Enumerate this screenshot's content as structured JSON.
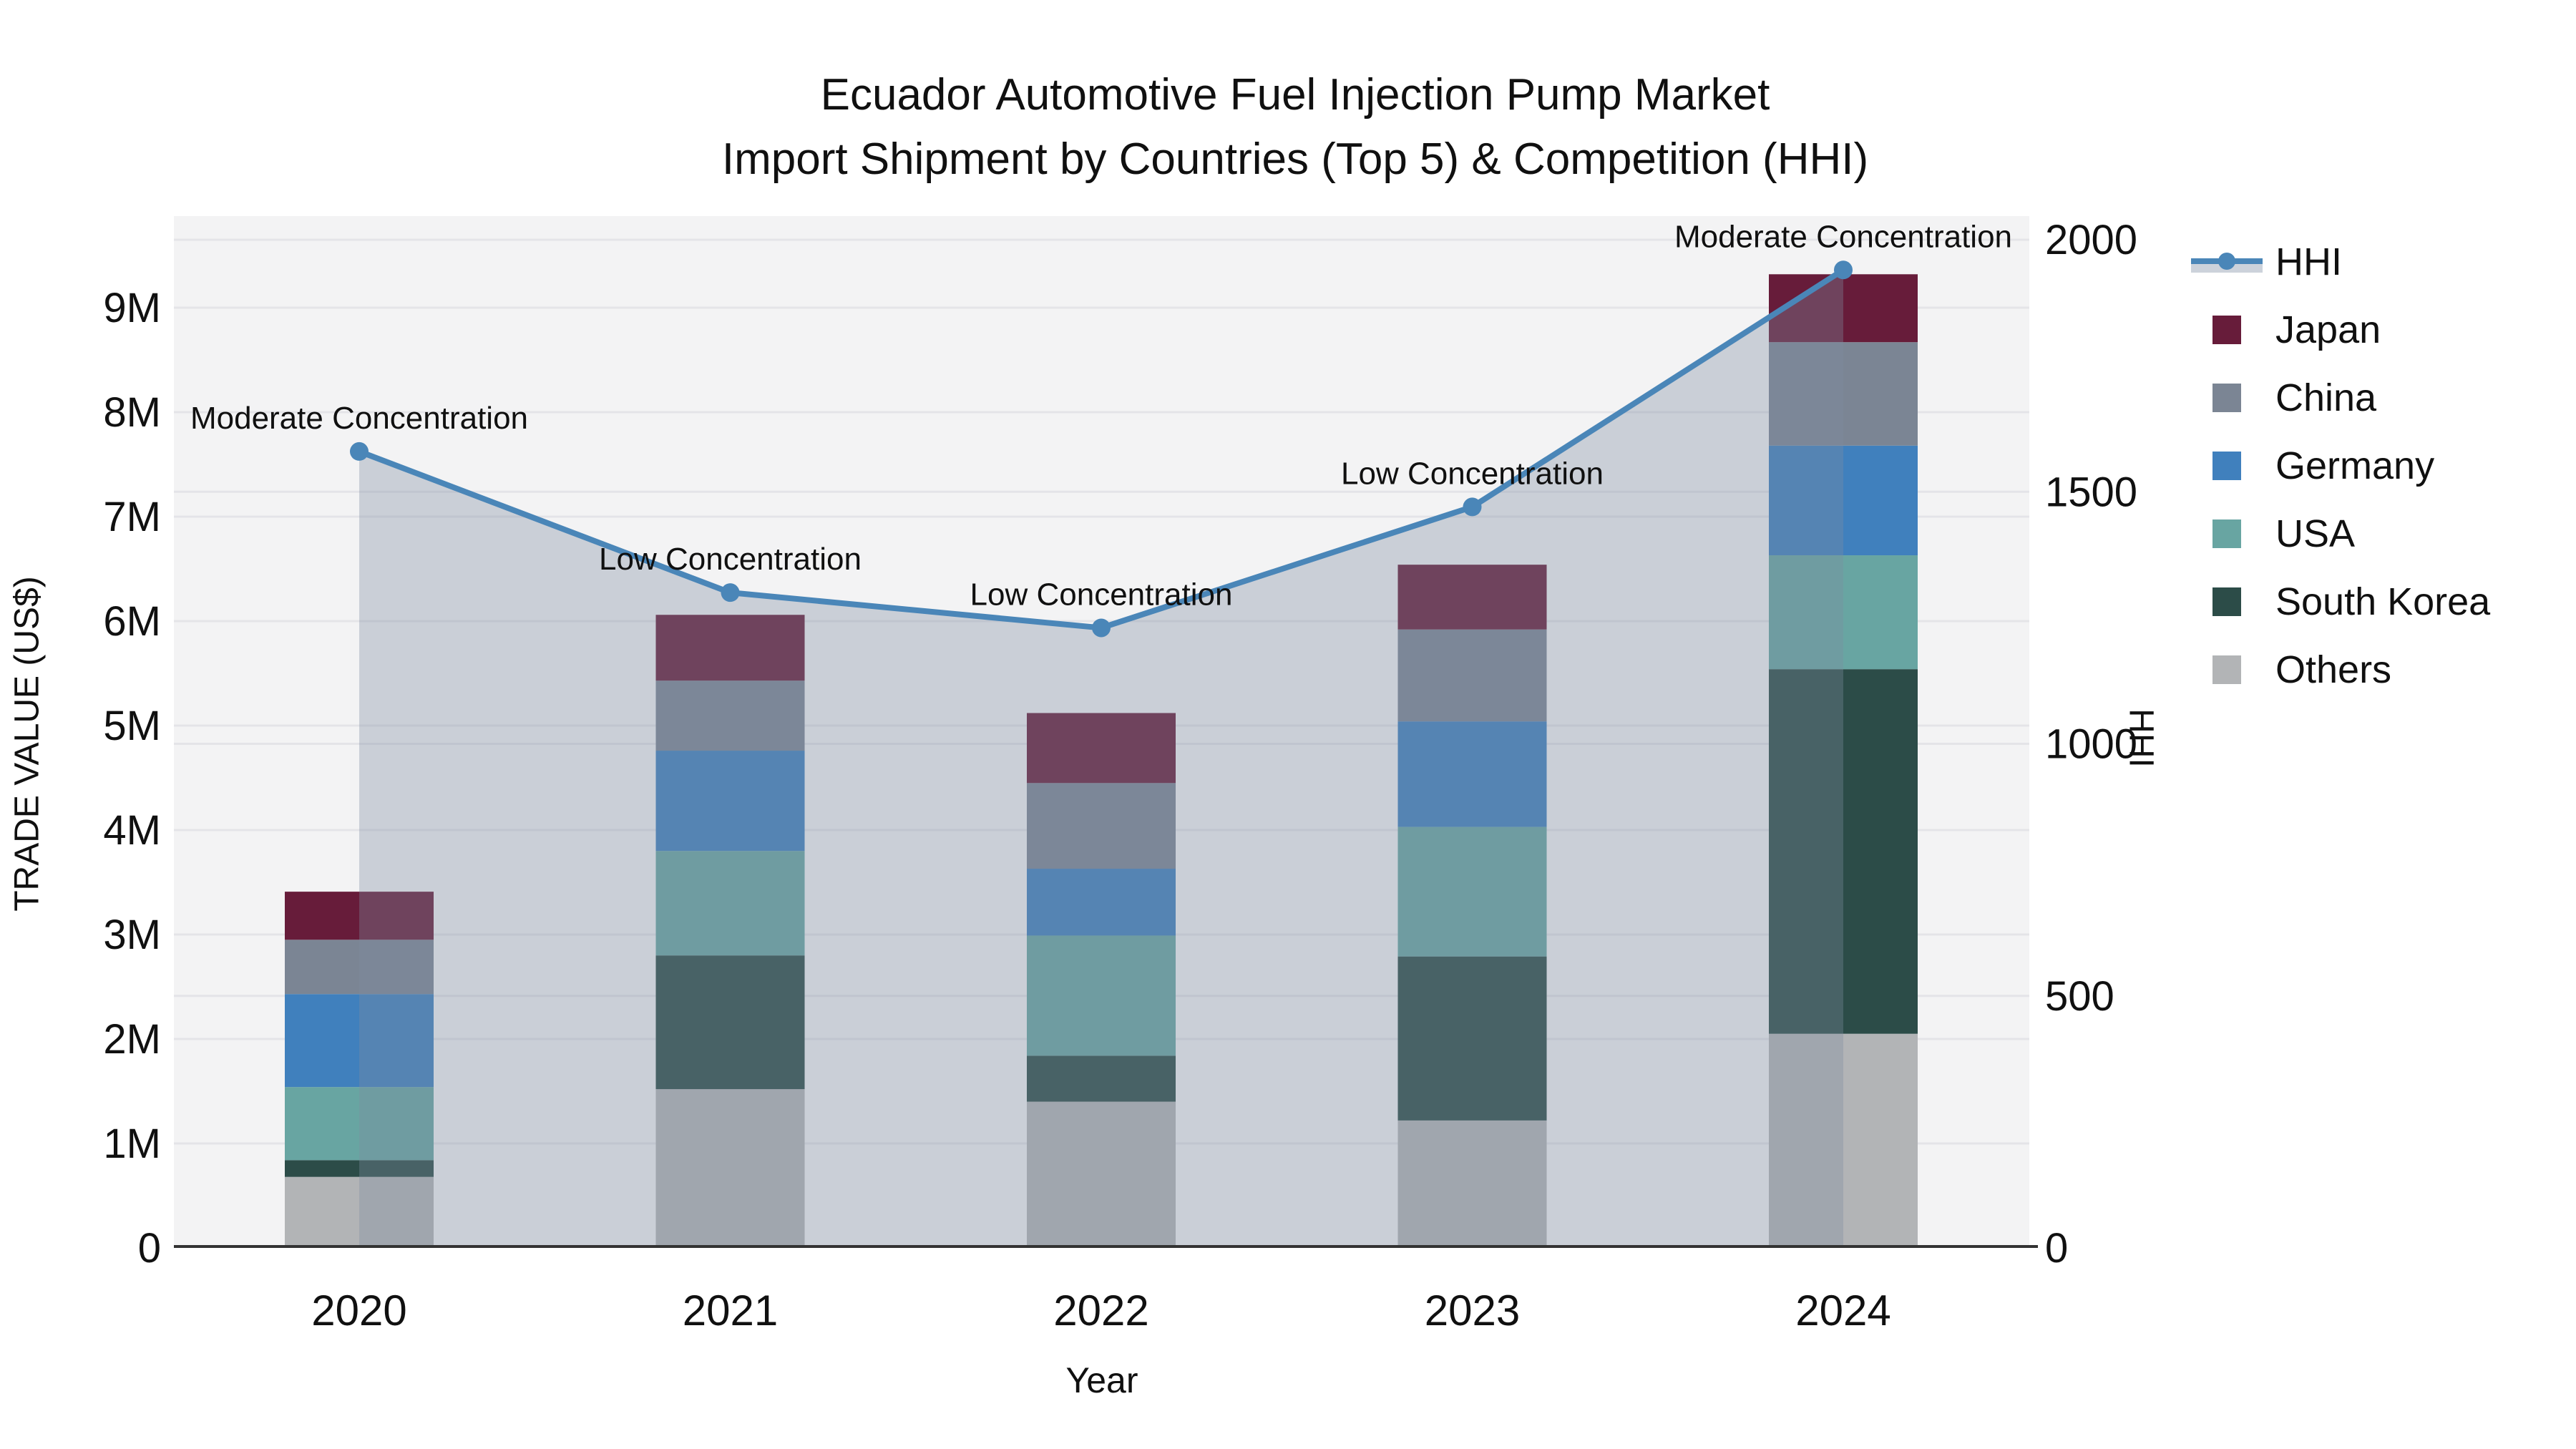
{
  "title": {
    "line1": "Ecuador Automotive Fuel Injection Pump Market",
    "line2": "Import Shipment by Countries (Top 5) & Competition (HHI)"
  },
  "legend": {
    "items": [
      {
        "label": "HHI",
        "type": "line",
        "color": "#4a86b8",
        "band_color": "#ccd2db"
      },
      {
        "label": "Japan",
        "type": "swatch",
        "color": "#671c3a"
      },
      {
        "label": "China",
        "type": "swatch",
        "color": "#7b8594"
      },
      {
        "label": "Germany",
        "type": "swatch",
        "color": "#4080bd"
      },
      {
        "label": "USA",
        "type": "swatch",
        "color": "#68a5a2"
      },
      {
        "label": "South Korea",
        "type": "swatch",
        "color": "#2c4c48"
      },
      {
        "label": "Others",
        "type": "swatch",
        "color": "#b2b4b6"
      }
    ]
  },
  "chart_data": {
    "type": "bar",
    "combo": "stacked bars (left axis) + HHI line with area fill (right axis)",
    "x_label": "Year",
    "categories": [
      "2020",
      "2021",
      "2022",
      "2023",
      "2024"
    ],
    "bar_unit": "trade value, USD millions",
    "series": [
      {
        "name": "Others",
        "color": "#b2b4b6",
        "values": [
          0.68,
          1.52,
          1.4,
          1.22,
          2.05
        ]
      },
      {
        "name": "South Korea",
        "color": "#2c4c48",
        "values": [
          0.16,
          1.28,
          0.44,
          1.57,
          3.49
        ]
      },
      {
        "name": "USA",
        "color": "#68a5a2",
        "values": [
          0.7,
          1.0,
          1.15,
          1.24,
          1.09
        ]
      },
      {
        "name": "Germany",
        "color": "#4080bd",
        "values": [
          0.89,
          0.96,
          0.64,
          1.01,
          1.05
        ]
      },
      {
        "name": "China",
        "color": "#7b8594",
        "values": [
          0.52,
          0.67,
          0.82,
          0.88,
          0.99
        ]
      },
      {
        "name": "Japan",
        "color": "#671c3a",
        "values": [
          0.46,
          0.63,
          0.67,
          0.62,
          0.65
        ]
      }
    ],
    "bar_totals": [
      3.41,
      6.06,
      5.12,
      6.54,
      9.32
    ],
    "line": {
      "name": "HHI",
      "color": "#4a86b8",
      "area_fill": "rgba(125,140,160,0.35)",
      "axis": "right",
      "values": [
        1580,
        1300,
        1230,
        1470,
        1940
      ]
    },
    "annotations": [
      "Moderate Concentration",
      "Low Concentration",
      "Low Concentration",
      "Low Concentration",
      "Moderate Concentration"
    ],
    "y_left": {
      "label": "TRADE VALUE (US$)",
      "tick_labels": [
        "0",
        "1M",
        "2M",
        "3M",
        "4M",
        "5M",
        "6M",
        "7M",
        "8M",
        "9M"
      ],
      "tick_values_m": [
        0,
        1,
        2,
        3,
        4,
        5,
        6,
        7,
        8,
        9
      ]
    },
    "y_right": {
      "label": "HHI",
      "tick_values": [
        0,
        500,
        1000,
        1500,
        2000
      ],
      "range": [
        0,
        2000
      ]
    },
    "grid": true,
    "legend_position": "right"
  },
  "colors": {
    "plot_background": "#f3f3f4",
    "gridline": "#e4e4e8",
    "axis_line": "#333333",
    "text": "#101010"
  }
}
